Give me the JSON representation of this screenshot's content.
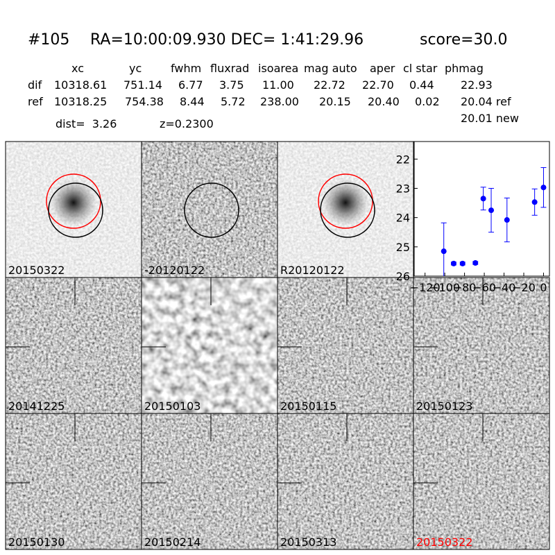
{
  "header": {
    "id": "#105",
    "coords": "RA=10:00:09.930 DEC= 1:41:29.96",
    "score": "score=30.0"
  },
  "table": {
    "columns": [
      "xc",
      "yc",
      "fwhm",
      "fluxrad",
      "isoarea",
      "mag auto",
      "aper",
      "cl star",
      "phmag"
    ],
    "rows": [
      [
        "dif",
        "10318.61",
        "751.14",
        "6.77",
        "3.75",
        "11.00",
        "22.72",
        "22.70",
        "0.44",
        "22.93"
      ],
      [
        "ref",
        "10318.25",
        "754.38",
        "8.44",
        "5.72",
        "238.00",
        "20.15",
        "20.40",
        "0.02",
        "20.04 ref"
      ]
    ],
    "note": "20.01 new"
  },
  "info": {
    "dist": "dist=  3.26",
    "z": "z=0.2300"
  },
  "stamps": [
    {
      "label": "20150322"
    },
    {
      "label": "-20120122"
    },
    {
      "label": "R20120122"
    },
    {
      "label": "20141225"
    },
    {
      "label": "20150103"
    },
    {
      "label": "20150115"
    },
    {
      "label": "20150123"
    },
    {
      "label": "20150130"
    },
    {
      "label": "20150214"
    },
    {
      "label": "20150313"
    },
    {
      "label": "20150322",
      "color": "#ff0000"
    }
  ],
  "chart_data": {
    "type": "scatter",
    "x": [
      -101,
      -91,
      -82,
      -69,
      -61,
      -53,
      -37,
      -9,
      0
    ],
    "series": [
      {
        "values": [
          25.15,
          25.57,
          25.57,
          25.55,
          23.35,
          23.75,
          24.08,
          23.47,
          22.97
        ],
        "errors": [
          0.97,
          0.05,
          0.05,
          0.05,
          0.39,
          0.75,
          0.75,
          0.45,
          0.68
        ],
        "color": "#0000ff"
      }
    ],
    "xlim": [
      -131,
      6
    ],
    "ylim": [
      26,
      21.4
    ],
    "xticks": [
      {
        "value": -120,
        "label": "−120"
      },
      {
        "value": -100,
        "label": "−100"
      },
      {
        "value": -80,
        "label": "−80"
      },
      {
        "value": -60,
        "label": "−60"
      },
      {
        "value": -40,
        "label": "−40"
      },
      {
        "value": -20,
        "label": "−20"
      },
      0
    ],
    "yticks": [
      22,
      23,
      24,
      25,
      26
    ]
  }
}
